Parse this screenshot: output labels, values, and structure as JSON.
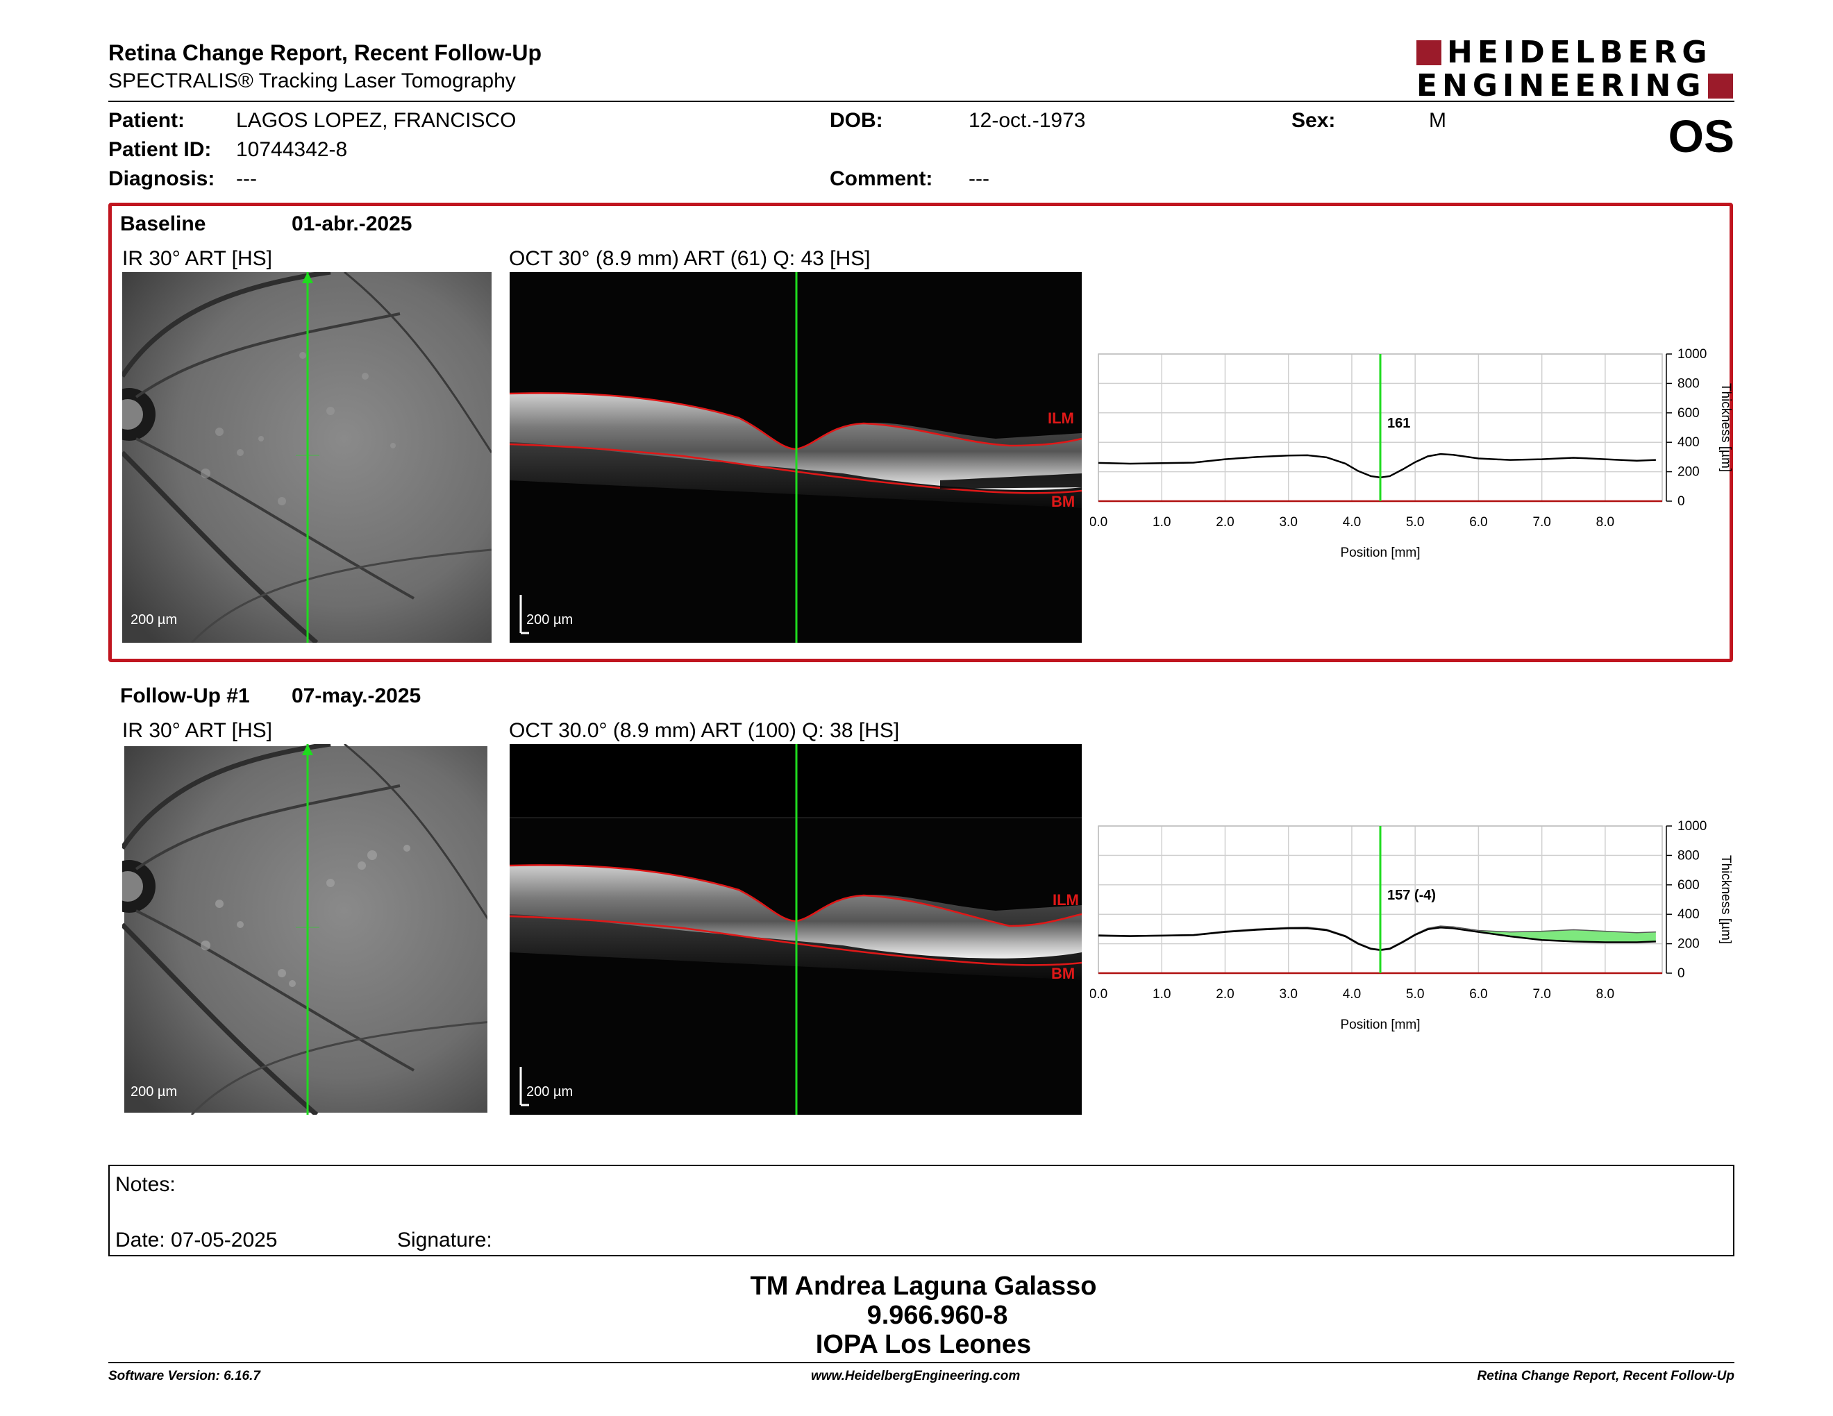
{
  "report": {
    "title": "Retina Change Report, Recent Follow-Up",
    "subtitle": "SPECTRALIS® Tracking Laser Tomography",
    "eye": "OS"
  },
  "logo": {
    "line1": "HEIDELBERG",
    "line2": "ENGINEERING",
    "brand_color": "#9b1b2a"
  },
  "patient": {
    "patient_label": "Patient:",
    "patient_value": "LAGOS LOPEZ, FRANCISCO",
    "id_label": "Patient ID:",
    "id_value": "10744342-8",
    "diagnosis_label": "Diagnosis:",
    "diagnosis_value": "---",
    "dob_label": "DOB:",
    "dob_value": "12-oct.-1973",
    "comment_label": "Comment:",
    "comment_value": "---",
    "sex_label": "Sex:",
    "sex_value": "M"
  },
  "baseline": {
    "label": "Baseline",
    "date": "01-abr.-2025",
    "ir_title": "IR 30° ART [HS]",
    "oct_title": "OCT 30° (8.9 mm) ART (61) Q: 43 [HS]",
    "ir_scale": "200 µm",
    "oct_scale": "200 µm",
    "ilm": "ILM",
    "bm": "BM",
    "marker_value": "161"
  },
  "followup": {
    "label": "Follow-Up #1",
    "date": "07-may.-2025",
    "ir_title": "IR 30° ART [HS]",
    "oct_title": "OCT 30.0° (8.9 mm) ART (100) Q: 38 [HS]",
    "ir_scale": "200 µm",
    "oct_scale": "200 µm",
    "ilm": "ILM",
    "bm": "BM",
    "marker_value": "157 (-4)"
  },
  "chart_data": [
    {
      "type": "line",
      "xlabel": "Position [mm]",
      "ylabel": "Thickness [µm]",
      "xlim": [
        0,
        8.9
      ],
      "ylim": [
        0,
        1000
      ],
      "x_ticks": [
        "0.0",
        "1.0",
        "2.0",
        "3.0",
        "4.0",
        "5.0",
        "6.0",
        "7.0",
        "8.0"
      ],
      "y_ticks": [
        "0",
        "200",
        "400",
        "600",
        "800",
        "1000"
      ],
      "grid": true,
      "marker_x": 4.45,
      "marker_label": "161",
      "x": [
        0,
        0.5,
        1,
        1.5,
        2,
        2.5,
        3,
        3.3,
        3.6,
        3.9,
        4.1,
        4.3,
        4.45,
        4.6,
        4.8,
        5,
        5.2,
        5.4,
        5.6,
        6,
        6.5,
        7,
        7.5,
        8,
        8.5,
        8.8
      ],
      "y": [
        260,
        255,
        258,
        262,
        285,
        300,
        310,
        312,
        298,
        255,
        205,
        170,
        161,
        170,
        215,
        265,
        305,
        320,
        315,
        290,
        280,
        285,
        295,
        285,
        275,
        280
      ]
    },
    {
      "type": "line",
      "xlabel": "Position [mm]",
      "ylabel": "Thickness [µm]",
      "xlim": [
        0,
        8.9
      ],
      "ylim": [
        0,
        1000
      ],
      "x_ticks": [
        "0.0",
        "1.0",
        "2.0",
        "3.0",
        "4.0",
        "5.0",
        "6.0",
        "7.0",
        "8.0"
      ],
      "y_ticks": [
        "0",
        "200",
        "400",
        "600",
        "800",
        "1000"
      ],
      "grid": true,
      "marker_x": 4.45,
      "marker_label": "157 (-4)",
      "x": [
        0,
        0.5,
        1,
        1.5,
        2,
        2.5,
        3,
        3.3,
        3.6,
        3.9,
        4.1,
        4.3,
        4.45,
        4.6,
        4.8,
        5,
        5.2,
        5.4,
        5.6,
        6,
        6.5,
        7,
        7.5,
        8,
        8.5,
        8.8
      ],
      "y": [
        255,
        252,
        255,
        258,
        280,
        295,
        305,
        305,
        292,
        250,
        200,
        165,
        157,
        165,
        210,
        260,
        298,
        310,
        305,
        280,
        250,
        225,
        215,
        210,
        210,
        215
      ],
      "baseline_y": [
        260,
        255,
        258,
        262,
        285,
        300,
        310,
        312,
        298,
        255,
        205,
        170,
        161,
        170,
        215,
        265,
        305,
        320,
        315,
        290,
        280,
        285,
        295,
        285,
        275,
        280
      ],
      "thinning_fill_color": "#7ee87e"
    }
  ],
  "notes": {
    "notes_label": "Notes:",
    "date_label": "Date: 07-05-2025",
    "signature_label": "Signature:"
  },
  "signer": {
    "name": "TM Andrea Laguna Galasso",
    "id": "9.966.960-8",
    "institution": "IOPA Los Leones"
  },
  "footer": {
    "software": "Software Version: 6.16.7",
    "website": "www.HeidelbergEngineering.com",
    "report": "Retina Change Report, Recent Follow-Up"
  }
}
